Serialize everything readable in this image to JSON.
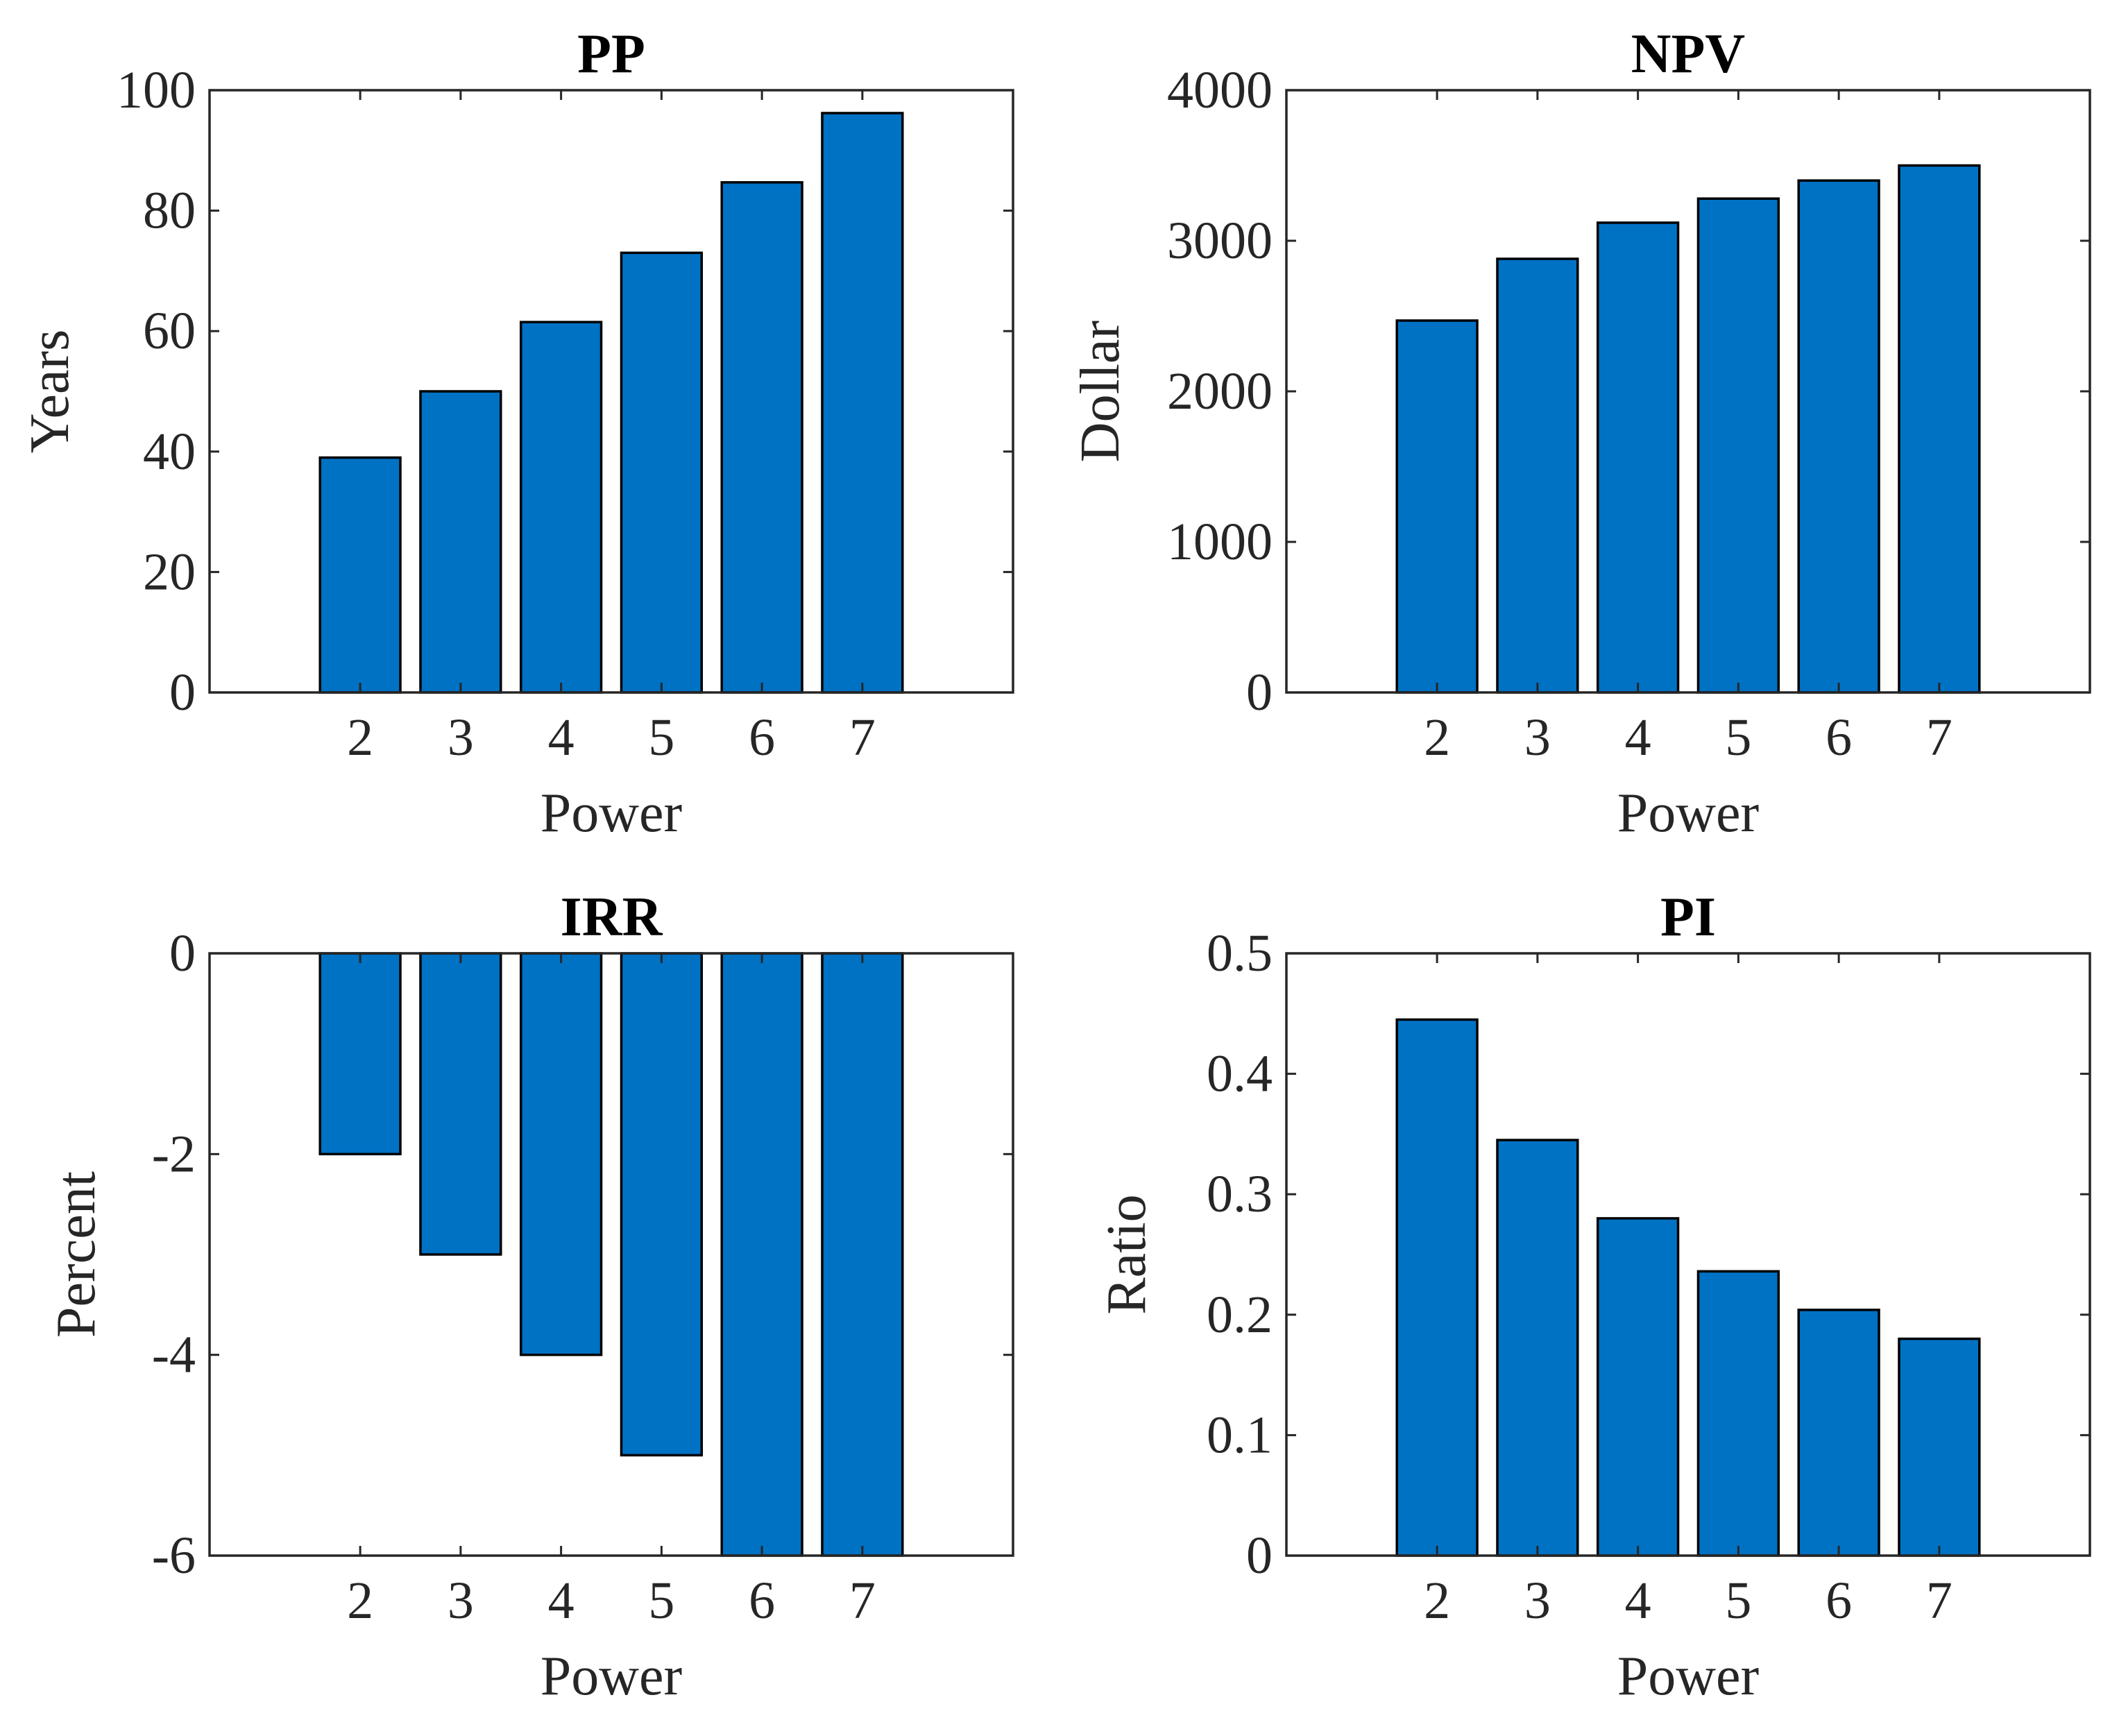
{
  "figure_name": "financial-indicators-grid",
  "bar_color": "#0072C4",
  "chart_data": [
    {
      "id": "pp",
      "type": "bar",
      "title": "PP",
      "xlabel": "Power",
      "ylabel": "Years",
      "categories": [
        "2",
        "3",
        "4",
        "5",
        "6",
        "7"
      ],
      "values": [
        39,
        50,
        61.5,
        73,
        84.7,
        96.2
      ],
      "ylim": [
        0,
        100
      ],
      "yticks": [
        0,
        20,
        40,
        60,
        80,
        100
      ],
      "ytick_labels": [
        "0",
        "20",
        "40",
        "60",
        "80",
        "100"
      ],
      "grid": false
    },
    {
      "id": "npv",
      "type": "bar",
      "title": "NPV",
      "xlabel": "Power",
      "ylabel": "Dollar",
      "categories": [
        "2",
        "3",
        "4",
        "5",
        "6",
        "7"
      ],
      "values": [
        2470,
        2880,
        3120,
        3280,
        3400,
        3500
      ],
      "ylim": [
        0,
        4000
      ],
      "yticks": [
        0,
        1000,
        2000,
        3000,
        4000
      ],
      "ytick_labels": [
        "0",
        "1000",
        "2000",
        "3000",
        "4000"
      ],
      "grid": false
    },
    {
      "id": "irr",
      "type": "bar",
      "title": "IRR",
      "xlabel": "Power",
      "ylabel": "Percent",
      "categories": [
        "2",
        "3",
        "4",
        "5",
        "6",
        "7"
      ],
      "values": [
        -2,
        -3,
        -4,
        -5,
        -6,
        -6
      ],
      "ylim": [
        -6,
        0
      ],
      "yticks": [
        -6,
        -4,
        -2,
        0
      ],
      "ytick_labels": [
        "-6",
        "-4",
        "-2",
        "0"
      ],
      "grid": false
    },
    {
      "id": "pi",
      "type": "bar",
      "title": "PI",
      "xlabel": "Power",
      "ylabel": "Ratio",
      "categories": [
        "2",
        "3",
        "4",
        "5",
        "6",
        "7"
      ],
      "values": [
        0.445,
        0.345,
        0.28,
        0.236,
        0.204,
        0.18
      ],
      "ylim": [
        0,
        0.5
      ],
      "yticks": [
        0,
        0.1,
        0.2,
        0.3,
        0.4,
        0.5
      ],
      "ytick_labels": [
        "0",
        "0.1",
        "0.2",
        "0.3",
        "0.4",
        "0.5"
      ],
      "grid": false
    }
  ]
}
